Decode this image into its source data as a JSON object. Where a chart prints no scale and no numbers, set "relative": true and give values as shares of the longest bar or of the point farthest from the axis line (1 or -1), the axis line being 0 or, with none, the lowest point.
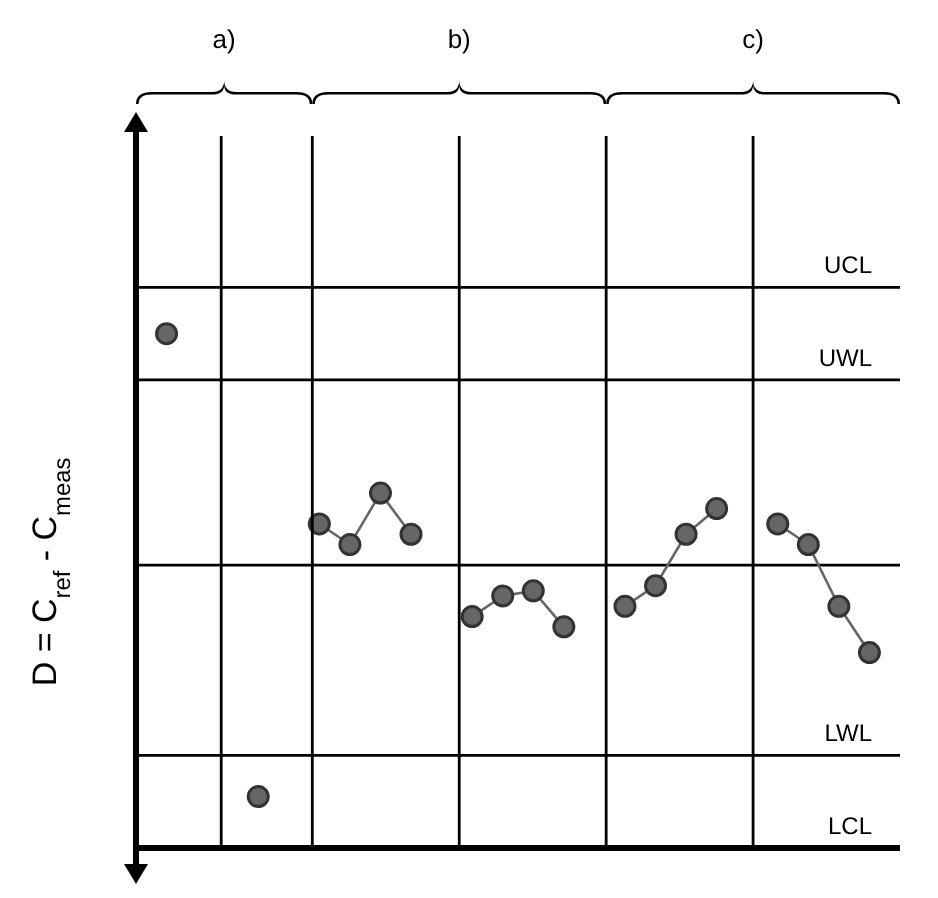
{
  "chart_data": {
    "type": "line",
    "relative": true,
    "ylabel": "D = C$_{ref}$ - C$_{meas}$",
    "annotations": [
      "a)",
      "b)",
      "c)"
    ],
    "categories": [
      null,
      null,
      null,
      null,
      null,
      null,
      null,
      null,
      null,
      null,
      null,
      null,
      null,
      null,
      null,
      null,
      null,
      null,
      null,
      null,
      null,
      null,
      null,
      null,
      null,
      null
    ],
    "marker": "circle",
    "line_style": "solid",
    "series": [
      {
        "color": "#666666",
        "values": [
          null,
          1.0,
          null,
          null,
          null,
          null,
          null,
          null,
          null,
          null,
          null,
          null,
          null,
          null,
          null,
          null,
          null,
          null,
          null,
          null,
          null,
          null,
          null,
          null,
          null,
          null
        ]
      },
      {
        "color": "#666666",
        "values": [
          null,
          null,
          null,
          null,
          0.1,
          null,
          null,
          null,
          null,
          null,
          null,
          null,
          null,
          null,
          null,
          null,
          null,
          null,
          null,
          null,
          null,
          null,
          null,
          null,
          null,
          null
        ]
      },
      {
        "color": "#666666",
        "values": [
          null,
          null,
          null,
          null,
          null,
          null,
          0.63,
          0.59,
          0.69,
          0.61,
          null,
          null,
          null,
          null,
          null,
          null,
          null,
          null,
          null,
          null,
          null,
          null,
          null,
          null,
          null,
          null
        ]
      },
      {
        "color": "#666666",
        "values": [
          null,
          null,
          null,
          null,
          null,
          null,
          null,
          null,
          null,
          null,
          null,
          0.45,
          0.49,
          0.5,
          0.43,
          null,
          null,
          null,
          null,
          null,
          null,
          null,
          null,
          null,
          null,
          null
        ]
      },
      {
        "color": "#666666",
        "values": [
          null,
          null,
          null,
          null,
          null,
          null,
          null,
          null,
          null,
          null,
          null,
          null,
          null,
          null,
          null,
          null,
          0.47,
          0.51,
          0.61,
          0.66,
          null,
          null,
          null,
          null,
          null,
          null
        ]
      },
      {
        "color": "#666666",
        "values": [
          null,
          null,
          null,
          null,
          null,
          null,
          null,
          null,
          null,
          null,
          null,
          null,
          null,
          null,
          null,
          null,
          null,
          null,
          null,
          null,
          null,
          0.63,
          0.59,
          0.47,
          0.38,
          null
        ]
      }
    ],
    "ref_lines": [
      {
        "axis": "y",
        "value": 1.09,
        "label": "UCL",
        "color": "#000000"
      },
      {
        "axis": "y",
        "value": 0.91,
        "label": "UWL",
        "color": "#000000"
      },
      {
        "axis": "y",
        "value": 0.55,
        "label": null,
        "color": "#000000"
      },
      {
        "axis": "y",
        "value": 0.18,
        "label": "LWL",
        "color": "#000000"
      },
      {
        "axis": "y",
        "value": 0,
        "label": "LCL",
        "color": "#000000"
      }
    ]
  }
}
